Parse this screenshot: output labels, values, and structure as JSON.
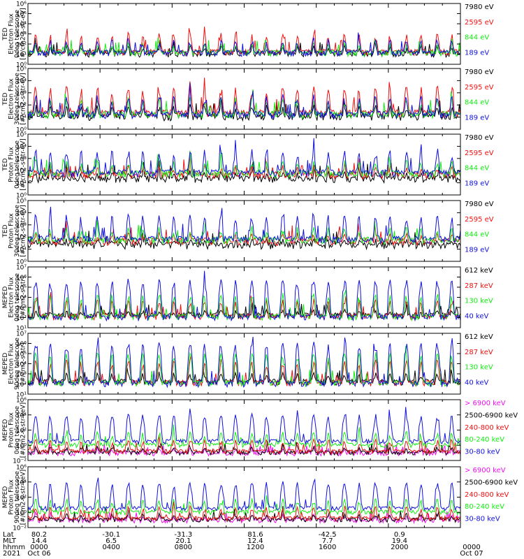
{
  "colors": {
    "black": "#000000",
    "red": "#ee1111",
    "green": "#11ee11",
    "blue": "#1111dd",
    "magenta": "#ee11ee",
    "axis": "#000000"
  },
  "chart_data": [
    {
      "type": "line",
      "ylabel": [
        "TED",
        "Electron Flux",
        "0deg telescope",
        "[#/cm2-s-str-eV]"
      ],
      "ylim": [
        1,
        1000000
      ],
      "yticks": [
        "10⁰",
        "10¹",
        "10²",
        "10³",
        "10⁴",
        "10⁵",
        "10⁶"
      ],
      "yscale": "log",
      "series": [
        {
          "name": "7980 eV",
          "color": "black",
          "base": 10,
          "amp": 50
        },
        {
          "name": "2595 eV",
          "color": "red",
          "base": 15,
          "amp": 1000
        },
        {
          "name": "844 eV",
          "color": "green",
          "base": 12,
          "amp": 100
        },
        {
          "name": "189 eV",
          "color": "blue",
          "base": 12,
          "amp": 300
        }
      ]
    },
    {
      "type": "line",
      "ylabel": [
        "TED",
        "Electron Flux",
        "30deg telescope",
        "[#/cm2-s-str-eV]"
      ],
      "ylim": [
        1,
        100000
      ],
      "yticks": [
        "10⁰",
        "10¹",
        "10²",
        "10³",
        "10⁴",
        "10⁵"
      ],
      "yscale": "log",
      "series": [
        {
          "name": "7980 eV",
          "color": "black",
          "base": 10,
          "amp": 80
        },
        {
          "name": "2595 eV",
          "color": "red",
          "base": 20,
          "amp": 3000
        },
        {
          "name": "844 eV",
          "color": "green",
          "base": 15,
          "amp": 300
        },
        {
          "name": "189 eV",
          "color": "blue",
          "base": 15,
          "amp": 500
        }
      ]
    },
    {
      "type": "line",
      "ylabel": [
        "TED",
        "Proton Flux",
        "0deg telescope",
        "[#/cm2-s-str-eV]"
      ],
      "ylim": [
        1,
        100000
      ],
      "yticks": [
        "10⁰",
        "10¹",
        "10²",
        "10³",
        "10⁴",
        "10⁵"
      ],
      "yscale": "log",
      "series": [
        {
          "name": "7980 eV",
          "color": "black",
          "base": 20,
          "amp": 50
        },
        {
          "name": "2595 eV",
          "color": "red",
          "base": 40,
          "amp": 200
        },
        {
          "name": "844 eV",
          "color": "green",
          "base": 50,
          "amp": 600
        },
        {
          "name": "189 eV",
          "color": "blue",
          "base": 60,
          "amp": 5000
        }
      ]
    },
    {
      "type": "line",
      "ylabel": [
        "TED",
        "Proton Flux",
        "30deg telescope",
        "[#/cm2-s-str-eV]"
      ],
      "ylim": [
        1,
        100000
      ],
      "yticks": [
        "10⁰",
        "10¹",
        "10²",
        "10³",
        "10⁴",
        "10⁵"
      ],
      "yscale": "log",
      "series": [
        {
          "name": "7980 eV",
          "color": "black",
          "base": 20,
          "amp": 40
        },
        {
          "name": "2595 eV",
          "color": "red",
          "base": 40,
          "amp": 150
        },
        {
          "name": "844 eV",
          "color": "green",
          "base": 50,
          "amp": 500
        },
        {
          "name": "189 eV",
          "color": "blue",
          "base": 60,
          "amp": 6000
        }
      ]
    },
    {
      "type": "line",
      "ylabel": [
        "MEPED",
        "Electron Flux",
        "0deg telescope",
        "[#/cm2-s-str]"
      ],
      "ylim": [
        10,
        10000000
      ],
      "yticks": [
        "10¹",
        "10²",
        "10³",
        "10⁴",
        "10⁵",
        "10⁶",
        "10⁷"
      ],
      "yscale": "log",
      "series": [
        {
          "name": "612 keV",
          "color": "black",
          "base": 150,
          "amp": 300
        },
        {
          "name": "287 keV",
          "color": "red",
          "base": 120,
          "amp": 5000
        },
        {
          "name": "130 keV",
          "color": "green",
          "base": 110,
          "amp": 20000
        },
        {
          "name": "40 keV",
          "color": "blue",
          "base": 100,
          "amp": 500000
        }
      ]
    },
    {
      "type": "line",
      "ylabel": [
        "MEPED",
        "Electron Flux",
        "90deg telescope",
        "[#/cm2-s-str]"
      ],
      "ylim": [
        10,
        10000000
      ],
      "yticks": [
        "10¹",
        "10²",
        "10³",
        "10⁴",
        "10⁵",
        "10⁶",
        "10⁷"
      ],
      "yscale": "log",
      "series": [
        {
          "name": "612 keV",
          "color": "black",
          "base": 150,
          "amp": 1000
        },
        {
          "name": "287 keV",
          "color": "red",
          "base": 120,
          "amp": 20000
        },
        {
          "name": "130 keV",
          "color": "green",
          "base": 110,
          "amp": 100000
        },
        {
          "name": "40 keV",
          "color": "blue",
          "base": 100,
          "amp": 1000000
        }
      ]
    },
    {
      "type": "line",
      "ylabel": [
        "MEPED",
        "Proton Flux",
        "0deg telescope",
        "[#/cm2-s-str-keV]"
      ],
      "ylim": [
        0.01,
        1000000
      ],
      "yticks": [
        "10⁻²",
        "10⁰",
        "10²",
        "10⁴",
        "10⁶"
      ],
      "yscale": "log",
      "series": [
        {
          "name": "> 6900 keV",
          "color": "magenta",
          "base": 0.08,
          "amp": 0.3
        },
        {
          "name": "2500-6900 keV",
          "color": "black",
          "base": 0.1,
          "amp": 0.5
        },
        {
          "name": "240-800 keV",
          "color": "red",
          "base": 0.15,
          "amp": 5
        },
        {
          "name": "80-240 keV",
          "color": "green",
          "base": 1,
          "amp": 50
        },
        {
          "name": "30-80 keV",
          "color": "blue",
          "base": 3,
          "amp": 10000
        }
      ]
    },
    {
      "type": "line",
      "ylabel": [
        "MEPED",
        "Proton Flux",
        "90deg telescope",
        "[#/cm2-s-str-keV]"
      ],
      "ylim": [
        0.01,
        1000000
      ],
      "yticks": [
        "10⁻²",
        "10⁰",
        "10²",
        "10⁴",
        "10⁶"
      ],
      "yscale": "log",
      "series": [
        {
          "name": "> 6900 keV",
          "color": "magenta",
          "base": 0.08,
          "amp": 0.3
        },
        {
          "name": "2500-6900 keV",
          "color": "black",
          "base": 0.1,
          "amp": 0.5
        },
        {
          "name": "240-800 keV",
          "color": "red",
          "base": 0.15,
          "amp": 5
        },
        {
          "name": "80-240 keV",
          "color": "green",
          "base": 1,
          "amp": 50
        },
        {
          "name": "30-80 keV",
          "color": "blue",
          "base": 3,
          "amp": 8000
        }
      ]
    }
  ],
  "time_axis": {
    "row_labels": [
      "Lat",
      "MLT",
      "hhmm",
      "2021"
    ],
    "columns": [
      {
        "lat": "80.2",
        "mlt": "14.4",
        "hhmm": "0000",
        "date": "Oct 06"
      },
      {
        "lat": "-30.1",
        "mlt": "6.5",
        "hhmm": "0400",
        "date": ""
      },
      {
        "lat": "-31.3",
        "mlt": "20.1",
        "hhmm": "0800",
        "date": ""
      },
      {
        "lat": "81.6",
        "mlt": "12.4",
        "hhmm": "1200",
        "date": ""
      },
      {
        "lat": "-42.5",
        "mlt": "7.7",
        "hhmm": "1600",
        "date": ""
      },
      {
        "lat": "0.9",
        "mlt": "19.4",
        "hhmm": "2000",
        "date": ""
      },
      {
        "lat": "",
        "mlt": "",
        "hhmm": "0000",
        "date": "Oct 07"
      }
    ]
  },
  "orbit_count": 14
}
